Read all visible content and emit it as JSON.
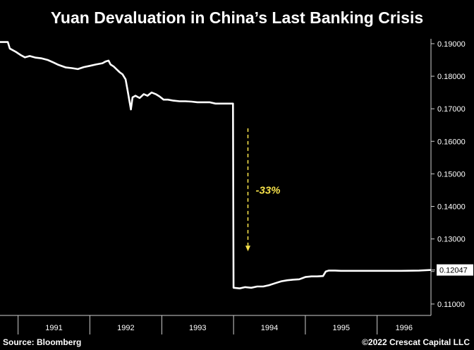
{
  "chart_data": {
    "type": "line",
    "title": "Yuan Devaluation in China’s Last Banking Crisis",
    "xlabel": "",
    "ylabel": "",
    "x_ticks": [
      "1991",
      "1992",
      "1993",
      "1994",
      "1995",
      "1996"
    ],
    "y_ticks": [
      "0.11000",
      "0.12000",
      "0.13000",
      "0.14000",
      "0.15000",
      "0.16000",
      "0.17000",
      "0.18000",
      "0.19000"
    ],
    "ylim": [
      0.1065,
      0.1915
    ],
    "xlim": [
      "1990-10-01",
      "1996-10-01"
    ],
    "last_value_label": "0.12047",
    "annotation": "-33%",
    "line_color": "#ffffff",
    "annotation_color": "#f5e04a",
    "grid": false,
    "series": [
      {
        "name": "",
        "points": [
          [
            "1990-10-01",
            0.1905
          ],
          [
            "1990-11-10",
            0.1905
          ],
          [
            "1990-11-20",
            0.1885
          ],
          [
            "1990-12-20",
            0.1875
          ],
          [
            "1991-01-15",
            0.1865
          ],
          [
            "1991-02-05",
            0.1858
          ],
          [
            "1991-03-01",
            0.1862
          ],
          [
            "1991-04-01",
            0.1857
          ],
          [
            "1991-05-01",
            0.1855
          ],
          [
            "1991-06-01",
            0.185
          ],
          [
            "1991-07-01",
            0.1842
          ],
          [
            "1991-07-25",
            0.1835
          ],
          [
            "1991-09-01",
            0.1827
          ],
          [
            "1991-10-01",
            0.1825
          ],
          [
            "1991-11-01",
            0.1822
          ],
          [
            "1991-12-01",
            0.1828
          ],
          [
            "1992-01-01",
            0.1832
          ],
          [
            "1992-02-01",
            0.1836
          ],
          [
            "1992-03-05",
            0.184
          ],
          [
            "1992-03-20",
            0.1845
          ],
          [
            "1992-04-05",
            0.1848
          ],
          [
            "1992-04-15",
            0.1836
          ],
          [
            "1992-05-01",
            0.183
          ],
          [
            "1992-05-15",
            0.1822
          ],
          [
            "1992-06-01",
            0.1812
          ],
          [
            "1992-06-15",
            0.1806
          ],
          [
            "1992-07-01",
            0.179
          ],
          [
            "1992-07-10",
            0.176
          ],
          [
            "1992-07-20",
            0.1725
          ],
          [
            "1992-07-28",
            0.1698
          ],
          [
            "1992-08-05",
            0.1735
          ],
          [
            "1992-08-20",
            0.174
          ],
          [
            "1992-09-10",
            0.1733
          ],
          [
            "1992-10-01",
            0.1745
          ],
          [
            "1992-10-20",
            0.174
          ],
          [
            "1992-11-10",
            0.175
          ],
          [
            "1992-12-01",
            0.1745
          ],
          [
            "1992-12-20",
            0.1738
          ],
          [
            "1993-01-10",
            0.1728
          ],
          [
            "1993-02-01",
            0.1728
          ],
          [
            "1993-03-01",
            0.1725
          ],
          [
            "1993-04-01",
            0.1723
          ],
          [
            "1993-05-01",
            0.1723
          ],
          [
            "1993-06-01",
            0.1722
          ],
          [
            "1993-07-01",
            0.172
          ],
          [
            "1993-08-01",
            0.172
          ],
          [
            "1993-09-01",
            0.172
          ],
          [
            "1993-10-01",
            0.1716
          ],
          [
            "1993-12-29",
            0.1716
          ],
          [
            "1994-01-01",
            0.115
          ],
          [
            "1994-02-01",
            0.1148
          ],
          [
            "1994-03-01",
            0.1152
          ],
          [
            "1994-04-01",
            0.115
          ],
          [
            "1994-05-01",
            0.1154
          ],
          [
            "1994-06-01",
            0.1154
          ],
          [
            "1994-07-01",
            0.1158
          ],
          [
            "1994-08-01",
            0.1164
          ],
          [
            "1994-09-01",
            0.117
          ],
          [
            "1994-10-01",
            0.1173
          ],
          [
            "1994-11-01",
            0.1175
          ],
          [
            "1994-12-01",
            0.1176
          ],
          [
            "1995-01-01",
            0.1183
          ],
          [
            "1995-02-01",
            0.1185
          ],
          [
            "1995-03-01",
            0.1185
          ],
          [
            "1995-04-01",
            0.1186
          ],
          [
            "1995-04-15",
            0.12
          ],
          [
            "1995-05-01",
            0.1203
          ],
          [
            "1995-06-01",
            0.1203
          ],
          [
            "1995-07-01",
            0.1202
          ],
          [
            "1995-09-01",
            0.1202
          ],
          [
            "1995-12-01",
            0.1202
          ],
          [
            "1996-02-01",
            0.1202
          ],
          [
            "1996-05-01",
            0.1202
          ],
          [
            "1996-08-01",
            0.1203
          ],
          [
            "1996-10-01",
            0.12047
          ]
        ]
      }
    ]
  },
  "footer": {
    "source": "Source: Bloomberg",
    "copyright": "©2022 Crescat Capital LLC"
  }
}
